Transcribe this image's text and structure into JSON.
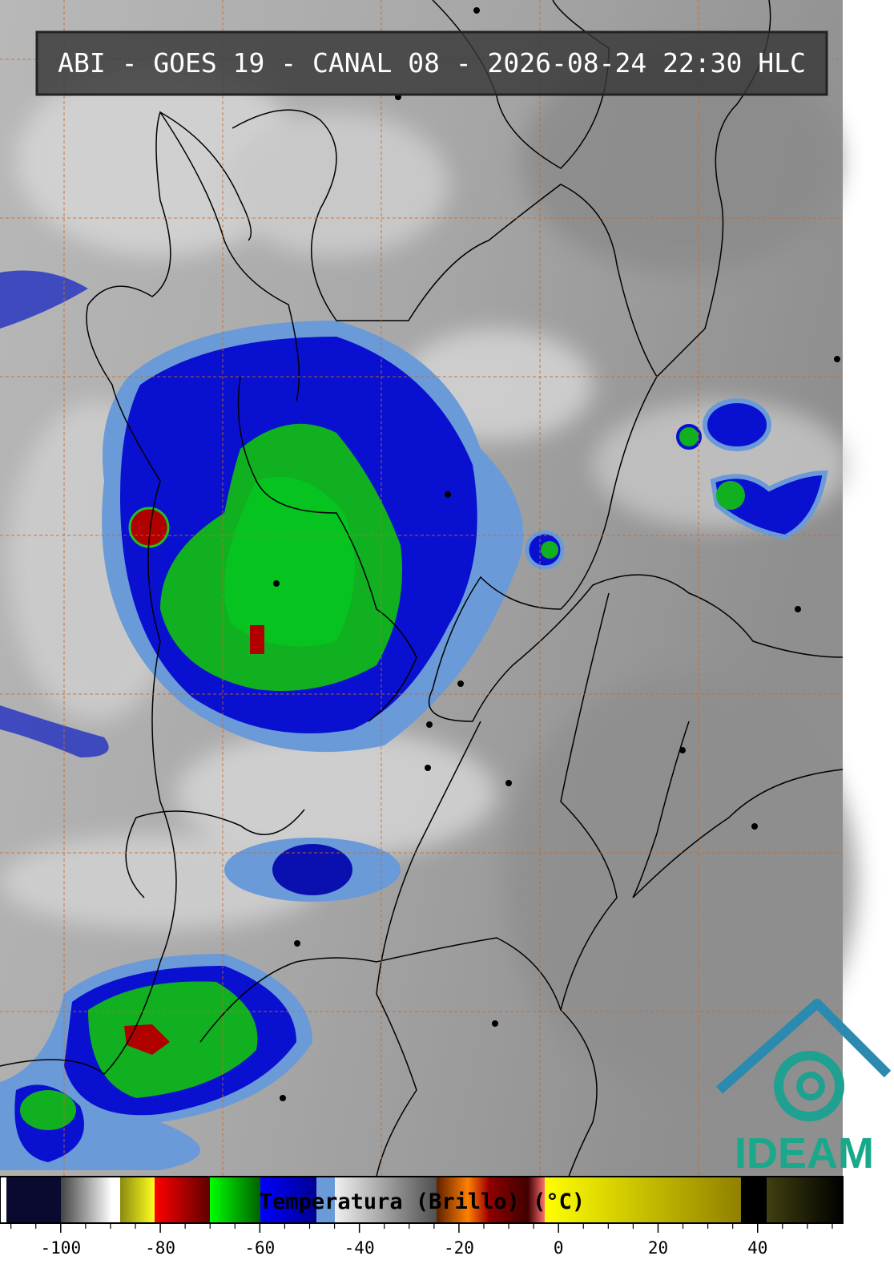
{
  "header": {
    "title": "ABI - GOES 19 - CANAL 08 - 2026-08-24 22:30 HLC"
  },
  "colorbar": {
    "label": "Temperatura (Brillo) (°C)",
    "lim": [
      -112.2,
      57.1
    ],
    "ticks": [
      -100,
      -80,
      -60,
      -40,
      -20,
      0,
      20,
      40
    ]
  },
  "logo": {
    "text": "IDEAM"
  }
}
